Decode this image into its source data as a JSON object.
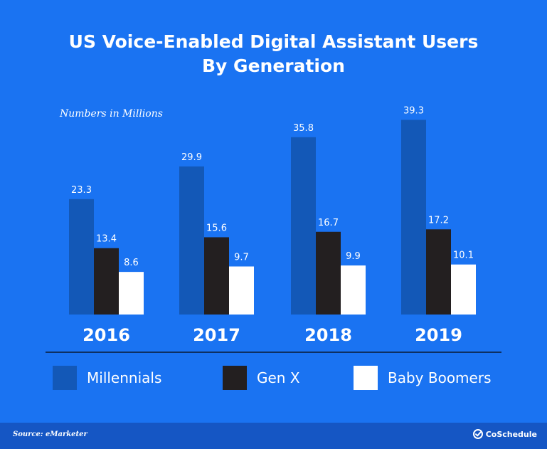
{
  "chart_data": {
    "type": "bar",
    "title_line1": "US Voice-Enabled Digital Assistant Users",
    "title_line2": "By Generation",
    "subtitle": "Numbers in Millions",
    "categories": [
      "2016",
      "2017",
      "2018",
      "2019"
    ],
    "series": [
      {
        "name": "Millennials",
        "values": [
          23.3,
          29.9,
          35.8,
          39.3
        ],
        "labels": [
          "23.3",
          "29.9",
          "35.8",
          "39.3"
        ],
        "color": "#1358b7"
      },
      {
        "name": "Gen X",
        "values": [
          13.4,
          15.6,
          16.7,
          17.2
        ],
        "labels": [
          "13.4",
          "15.6",
          "16.7",
          "17.2"
        ],
        "color": "#231f20"
      },
      {
        "name": "Baby Boomers",
        "values": [
          8.6,
          9.7,
          9.9,
          10.1
        ],
        "labels": [
          "8.6",
          "9.7",
          "9.9",
          "10.1"
        ],
        "color": "#ffffff"
      }
    ],
    "ylim": [
      0,
      45
    ],
    "grid": false,
    "legend_position": "bottom"
  },
  "footer": {
    "source": "Source: eMarketer",
    "brand": "CoSchedule"
  },
  "colors": {
    "background": "#1a73f2",
    "footer": "#1556c4",
    "axis_line": "#0b1a33"
  }
}
